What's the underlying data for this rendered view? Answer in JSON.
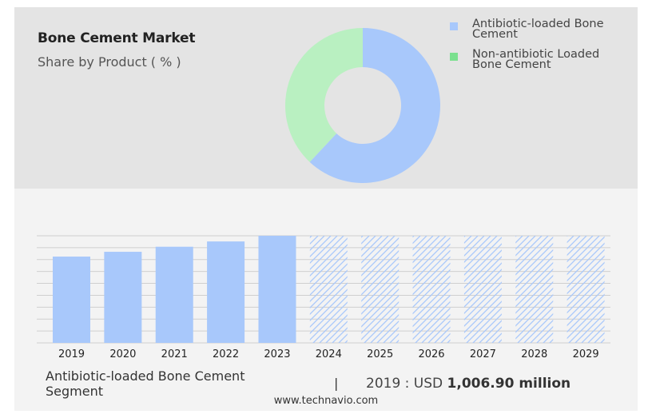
{
  "header": {
    "title": "Bone Cement Market",
    "subtitle": "Share by Product ( % )"
  },
  "legend": [
    {
      "label": "Antibiotic-loaded Bone Cement",
      "color": "#a8c8fb"
    },
    {
      "label": "Non-antibiotic Loaded Bone Cement",
      "color": "#7be08f"
    }
  ],
  "footer": {
    "segment_label": "Antibiotic-loaded Bone Cement Segment",
    "separator": "|",
    "year_prefix": "2019 : USD ",
    "value": "1,006.90 million",
    "source": "www.technavio.com"
  },
  "chart_data": [
    {
      "type": "pie",
      "title": "Share by Product ( % )",
      "labels": [
        "Antibiotic-loaded Bone Cement",
        "Non-antibiotic Loaded Bone Cement"
      ],
      "values": [
        62,
        38
      ],
      "colors": [
        "#a8c8fb",
        "#b9f0c1"
      ],
      "donut": true
    },
    {
      "type": "bar",
      "categories": [
        "2019",
        "2020",
        "2021",
        "2022",
        "2023",
        "2024",
        "2025",
        "2026",
        "2027",
        "2028",
        "2029"
      ],
      "values": [
        1006.9,
        1063,
        1122,
        1184,
        1250,
        null,
        null,
        null,
        null,
        null,
        null
      ],
      "forecast_from": "2024",
      "ylim": [
        0,
        1250
      ],
      "grid": true,
      "bar_color": "#a8c8fb",
      "forecast_color": "#a8c8fb"
    }
  ]
}
